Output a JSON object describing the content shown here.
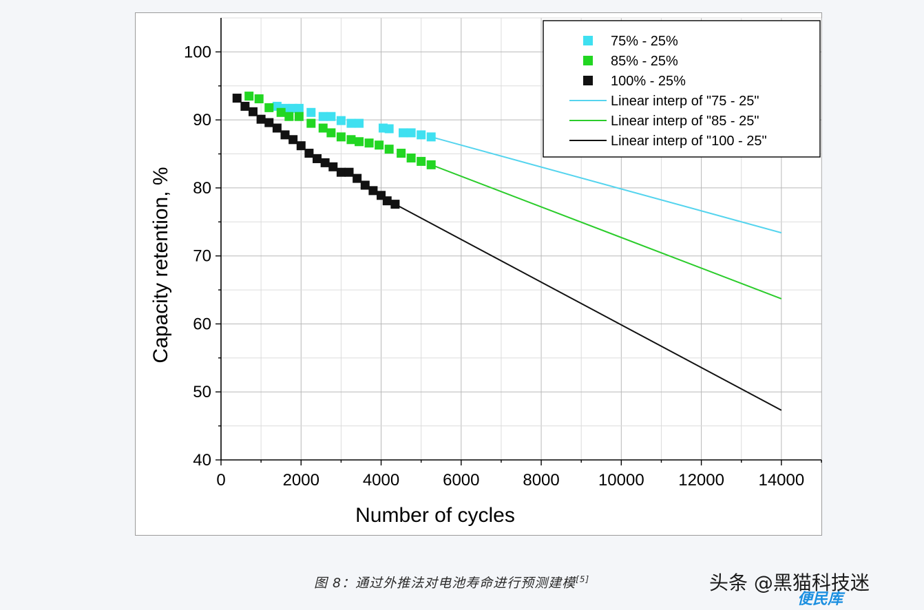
{
  "chart_data": {
    "type": "scatter",
    "xlabel": "Number of cycles",
    "ylabel": "Capacity retention, %",
    "xlim": [
      0,
      15000
    ],
    "ylim": [
      40,
      105
    ],
    "xticks": [
      0,
      2000,
      4000,
      6000,
      8000,
      10000,
      12000,
      14000
    ],
    "yticks": [
      40,
      50,
      60,
      70,
      80,
      90,
      100
    ],
    "grid": true,
    "legend_position": "top-right",
    "series": [
      {
        "name": "75% - 25%",
        "kind": "markers",
        "color": "#3fe0f0",
        "marker": "square",
        "x": [
          1400,
          1600,
          1800,
          1950,
          2250,
          2550,
          2750,
          3000,
          3250,
          3450,
          4050,
          4200,
          4550,
          4750,
          5000,
          5250
        ],
        "y": [
          92.0,
          91.7,
          91.7,
          91.7,
          91.1,
          90.5,
          90.5,
          89.9,
          89.5,
          89.5,
          88.8,
          88.7,
          88.1,
          88.1,
          87.8,
          87.5
        ]
      },
      {
        "name": "85% - 25%",
        "kind": "markers",
        "color": "#22d622",
        "marker": "square",
        "x": [
          700,
          950,
          1200,
          1500,
          1700,
          1950,
          2250,
          2550,
          2750,
          3000,
          3250,
          3450,
          3700,
          3950,
          4200,
          4500,
          4750,
          5000,
          5250
        ],
        "y": [
          93.5,
          93.1,
          91.8,
          91.1,
          90.5,
          90.5,
          89.5,
          88.8,
          88.1,
          87.5,
          87.1,
          86.8,
          86.6,
          86.3,
          85.7,
          85.1,
          84.4,
          83.9,
          83.4
        ]
      },
      {
        "name": "100% - 25%",
        "kind": "markers",
        "color": "#111111",
        "marker": "square",
        "x": [
          400,
          600,
          800,
          1000,
          1200,
          1400,
          1600,
          1800,
          2000,
          2200,
          2400,
          2600,
          2800,
          3000,
          3200,
          3400,
          3600,
          3800,
          4000,
          4150,
          4350
        ],
        "y": [
          93.2,
          92.0,
          91.2,
          90.1,
          89.6,
          88.8,
          87.8,
          87.1,
          86.2,
          85.1,
          84.3,
          83.7,
          83.1,
          82.3,
          82.3,
          81.4,
          80.4,
          79.6,
          78.9,
          78.1,
          77.6
        ]
      },
      {
        "name": "Linear interp of \"75 - 25\"",
        "kind": "line",
        "color": "#55d4ee",
        "x": [
          5250,
          14000
        ],
        "y": [
          87.5,
          73.4
        ]
      },
      {
        "name": "Linear interp of \"85 - 25\"",
        "kind": "line",
        "color": "#2bcc2b",
        "x": [
          5250,
          14000
        ],
        "y": [
          83.4,
          63.7
        ]
      },
      {
        "name": "Linear interp of \"100 - 25\"",
        "kind": "line",
        "color": "#111111",
        "x": [
          4350,
          14000
        ],
        "y": [
          77.6,
          47.3
        ]
      }
    ]
  },
  "caption": {
    "text": "图 8：通过外推法对电池寿命进行预测建模",
    "ref": "[5]"
  },
  "watermark": {
    "text": "头条 @黑猫科技迷",
    "sub": "便民库"
  }
}
